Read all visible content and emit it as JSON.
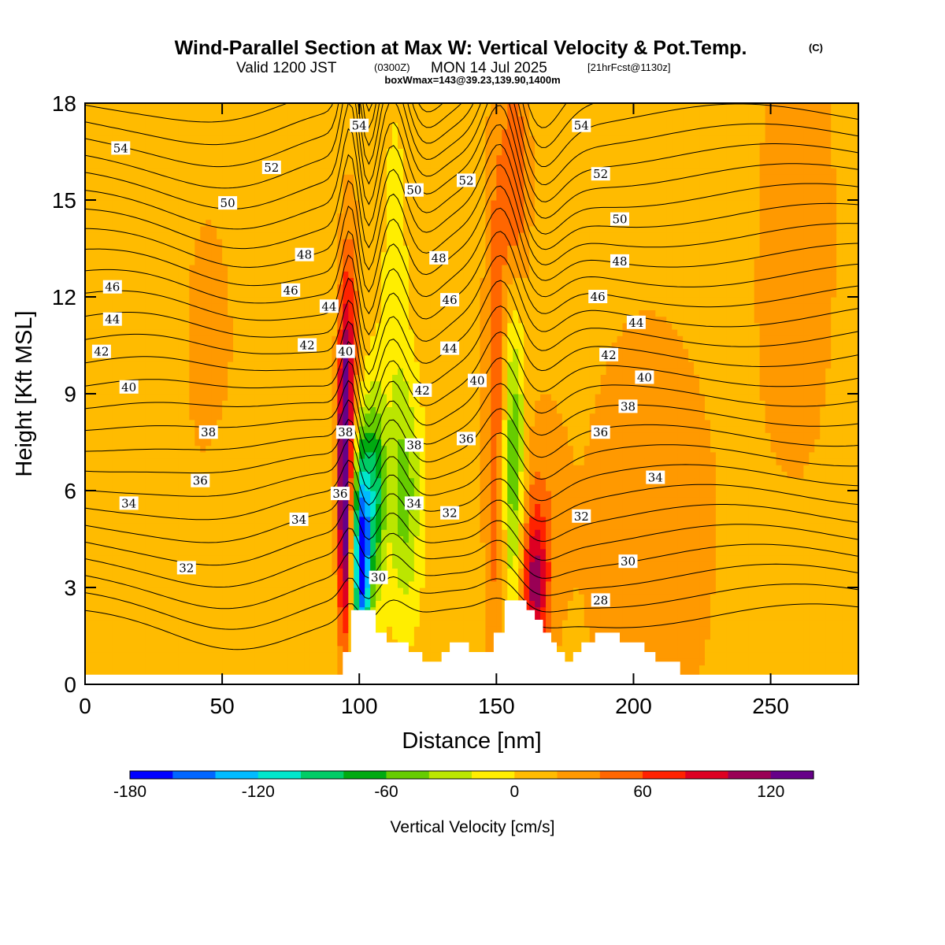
{
  "header": {
    "title": "Wind-Parallel Section at Max W: Vertical Velocity & Pot.Temp.",
    "copyright": "(C)",
    "valid_prefix": "Valid 1200 JST",
    "valid_utc": "(0300Z)",
    "valid_date": "MON 14 Jul 2025",
    "forecast": "[21hrFcst@1130z]",
    "boxwmax": "boxWmax=143@39.23,139.90,1400m"
  },
  "chart_data": {
    "type": "heatmap",
    "xlabel": "Distance [nm]",
    "ylabel": "Height [Kft MSL]",
    "xlim": [
      0,
      282
    ],
    "ylim": [
      0,
      18
    ],
    "x_ticks": [
      0,
      50,
      100,
      150,
      200,
      250
    ],
    "y_ticks": [
      0,
      3,
      6,
      9,
      12,
      15,
      18
    ],
    "colorbar": {
      "label": "Vertical Velocity [cm/s]",
      "bounds": [
        -180,
        -160,
        -140,
        -120,
        -100,
        -80,
        -60,
        -40,
        -20,
        0,
        20,
        40,
        60,
        80,
        100,
        120,
        140
      ],
      "tick_values": [
        -180,
        -120,
        -60,
        0,
        60,
        120
      ],
      "colors": [
        "#0000ff",
        "#0066ff",
        "#00bbff",
        "#00e6cc",
        "#00cc66",
        "#00aa11",
        "#66cc00",
        "#bbe600",
        "#ffee00",
        "#ffbb00",
        "#ff9900",
        "#ff6600",
        "#ff2200",
        "#dd0022",
        "#990055",
        "#660088"
      ]
    },
    "background_value": 10,
    "velocity_features": [
      {
        "x": 94.5,
        "y": 6.0,
        "sx": 1.6,
        "sy": 3.2,
        "w": 140
      },
      {
        "x": 96.5,
        "y": 10.0,
        "sx": 2.5,
        "sy": 3.0,
        "w": 65
      },
      {
        "x": 101,
        "y": 4.0,
        "sx": 2.2,
        "sy": 2.5,
        "w": -185
      },
      {
        "x": 106,
        "y": 6.0,
        "sx": 2.5,
        "sy": 2.2,
        "w": -90
      },
      {
        "x": 117,
        "y": 5.8,
        "sx": 4.0,
        "sy": 2.5,
        "w": -55
      },
      {
        "x": 113,
        "y": 11.5,
        "sx": 3.5,
        "sy": 5.0,
        "w": -20
      },
      {
        "x": 150,
        "y": 8.5,
        "sx": 3.0,
        "sy": 6.0,
        "w": 50
      },
      {
        "x": 156,
        "y": 6.8,
        "sx": 3.0,
        "sy": 3.5,
        "w": -75
      },
      {
        "x": 157,
        "y": 15.5,
        "sx": 3.5,
        "sy": 2.5,
        "w": 50
      },
      {
        "x": 164,
        "y": 3.0,
        "sx": 3.5,
        "sy": 1.6,
        "w": 85
      },
      {
        "x": 166,
        "y": 5.2,
        "sx": 6.0,
        "sy": 2.5,
        "w": 25
      },
      {
        "x": 205,
        "y": 4.5,
        "sx": 20,
        "sy": 6.0,
        "w": 20
      },
      {
        "x": 45,
        "y": 9.0,
        "sx": 15,
        "sy": 9.0,
        "w": 12
      },
      {
        "x": 13,
        "y": 6.0,
        "sx": 12,
        "sy": 3.0,
        "w": -10
      },
      {
        "x": 60,
        "y": 5.0,
        "sx": 10,
        "sy": 2.0,
        "w": -10
      },
      {
        "x": 260,
        "y": 14.0,
        "sx": 15,
        "sy": 8.0,
        "w": 15
      }
    ],
    "terrain": [
      [
        0,
        0.3
      ],
      [
        94,
        0.3
      ],
      [
        94,
        1.0
      ],
      [
        97,
        1.0
      ],
      [
        97,
        2.3
      ],
      [
        106,
        2.3
      ],
      [
        106,
        1.6
      ],
      [
        110,
        1.6
      ],
      [
        110,
        1.3
      ],
      [
        118,
        1.3
      ],
      [
        118,
        1.0
      ],
      [
        123,
        1.0
      ],
      [
        123,
        0.7
      ],
      [
        130,
        0.7
      ],
      [
        130,
        1.0
      ],
      [
        133,
        1.0
      ],
      [
        133,
        1.3
      ],
      [
        140,
        1.3
      ],
      [
        140,
        1.0
      ],
      [
        149,
        1.0
      ],
      [
        149,
        1.6
      ],
      [
        153,
        1.6
      ],
      [
        153,
        2.6
      ],
      [
        161,
        2.6
      ],
      [
        161,
        2.3
      ],
      [
        164,
        2.3
      ],
      [
        164,
        2.0
      ],
      [
        167,
        2.0
      ],
      [
        167,
        1.6
      ],
      [
        170,
        1.6
      ],
      [
        170,
        1.3
      ],
      [
        172,
        1.3
      ],
      [
        172,
        1.0
      ],
      [
        175,
        1.0
      ],
      [
        175,
        0.7
      ],
      [
        178,
        0.7
      ],
      [
        178,
        1.0
      ],
      [
        181,
        1.0
      ],
      [
        181,
        1.3
      ],
      [
        186,
        1.3
      ],
      [
        186,
        1.6
      ],
      [
        195,
        1.6
      ],
      [
        195,
        1.3
      ],
      [
        204,
        1.3
      ],
      [
        204,
        1.0
      ],
      [
        208,
        1.0
      ],
      [
        208,
        0.7
      ],
      [
        217,
        0.7
      ],
      [
        217,
        0.3
      ],
      [
        282,
        0.3
      ]
    ],
    "theta_isentropes": [
      28,
      29,
      30,
      31,
      32,
      33,
      34,
      35,
      36,
      37,
      38,
      39,
      40,
      41,
      42,
      43,
      44,
      45,
      46,
      47,
      48,
      49,
      50,
      51,
      52,
      53,
      54,
      55
    ],
    "theta_labels": [
      {
        "text": "54",
        "x": 13,
        "y": 16.6
      },
      {
        "text": "52",
        "x": 68,
        "y": 16.0
      },
      {
        "text": "50",
        "x": 52,
        "y": 14.9
      },
      {
        "text": "48",
        "x": 80,
        "y": 13.3
      },
      {
        "text": "46",
        "x": 10,
        "y": 12.3
      },
      {
        "text": "46",
        "x": 75,
        "y": 12.2
      },
      {
        "text": "44",
        "x": 10,
        "y": 11.3
      },
      {
        "text": "44",
        "x": 89,
        "y": 11.7
      },
      {
        "text": "42",
        "x": 6,
        "y": 10.3
      },
      {
        "text": "42",
        "x": 81,
        "y": 10.5
      },
      {
        "text": "40",
        "x": 16,
        "y": 9.2
      },
      {
        "text": "40",
        "x": 95,
        "y": 10.3
      },
      {
        "text": "38",
        "x": 45,
        "y": 7.8
      },
      {
        "text": "38",
        "x": 95,
        "y": 7.8
      },
      {
        "text": "36",
        "x": 42,
        "y": 6.3
      },
      {
        "text": "36",
        "x": 93,
        "y": 5.9
      },
      {
        "text": "34",
        "x": 16,
        "y": 5.6
      },
      {
        "text": "34",
        "x": 78,
        "y": 5.1
      },
      {
        "text": "32",
        "x": 37,
        "y": 3.6
      },
      {
        "text": "30",
        "x": 107,
        "y": 3.3
      },
      {
        "text": "54",
        "x": 100,
        "y": 17.3
      },
      {
        "text": "50",
        "x": 120,
        "y": 15.3
      },
      {
        "text": "52",
        "x": 139,
        "y": 15.6
      },
      {
        "text": "48",
        "x": 129,
        "y": 13.2
      },
      {
        "text": "46",
        "x": 133,
        "y": 11.9
      },
      {
        "text": "44",
        "x": 133,
        "y": 10.4
      },
      {
        "text": "42",
        "x": 123,
        "y": 9.1
      },
      {
        "text": "40",
        "x": 143,
        "y": 9.4
      },
      {
        "text": "38",
        "x": 120,
        "y": 7.4
      },
      {
        "text": "36",
        "x": 139,
        "y": 7.6
      },
      {
        "text": "34",
        "x": 120,
        "y": 5.6
      },
      {
        "text": "32",
        "x": 133,
        "y": 5.3
      },
      {
        "text": "54",
        "x": 181,
        "y": 17.3
      },
      {
        "text": "52",
        "x": 188,
        "y": 15.8
      },
      {
        "text": "50",
        "x": 195,
        "y": 14.4
      },
      {
        "text": "48",
        "x": 195,
        "y": 13.1
      },
      {
        "text": "46",
        "x": 187,
        "y": 12.0
      },
      {
        "text": "44",
        "x": 201,
        "y": 11.2
      },
      {
        "text": "42",
        "x": 191,
        "y": 10.2
      },
      {
        "text": "40",
        "x": 204,
        "y": 9.5
      },
      {
        "text": "38",
        "x": 198,
        "y": 8.6
      },
      {
        "text": "36",
        "x": 188,
        "y": 7.8
      },
      {
        "text": "34",
        "x": 208,
        "y": 6.4
      },
      {
        "text": "32",
        "x": 181,
        "y": 5.2
      },
      {
        "text": "30",
        "x": 198,
        "y": 3.8
      },
      {
        "text": "28",
        "x": 188,
        "y": 2.6
      }
    ]
  }
}
